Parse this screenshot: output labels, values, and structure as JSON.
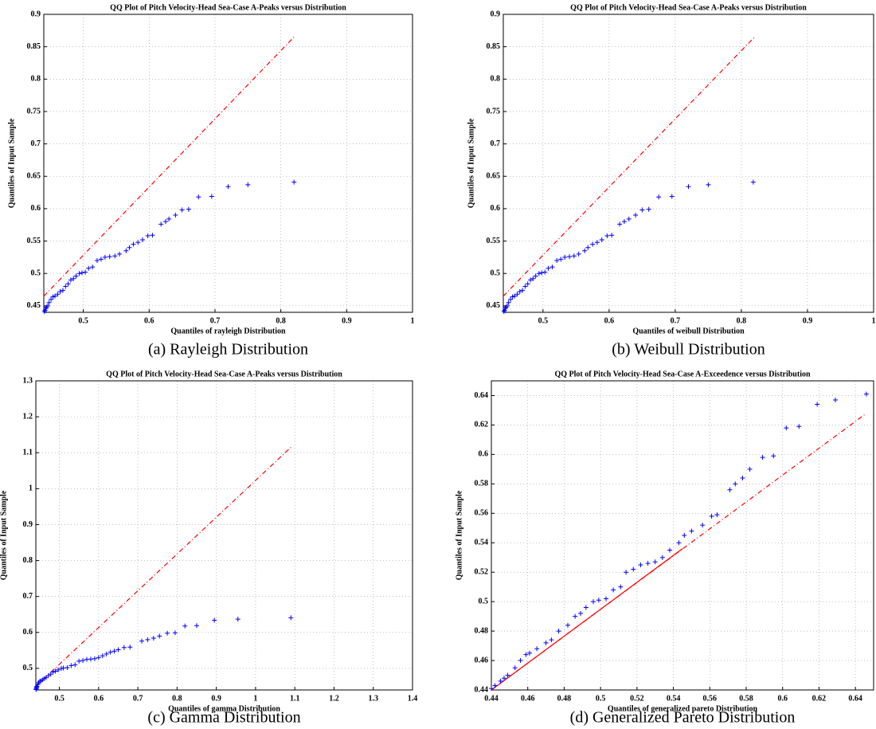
{
  "chart_data": [
    {
      "type": "scatter",
      "title": "QQ Plot of Pitch Velocity-Head Sea-Case A-Peaks versus Distribution",
      "xlabel": "Quantiles of rayleigh Distribution",
      "ylabel": "Quantiles of Input Sample",
      "caption": "(a) Rayleigh Distribution",
      "marker": "+",
      "color": "#0000ff",
      "grid": true,
      "xlim": [
        0.44,
        1
      ],
      "ylim": [
        0.44,
        0.9
      ],
      "xticks": [
        0.5,
        0.6,
        0.7,
        0.8,
        0.9,
        1
      ],
      "yticks": [
        0.45,
        0.5,
        0.55,
        0.6,
        0.65,
        0.7,
        0.75,
        0.8,
        0.85,
        0.9
      ],
      "x": [
        0.441,
        0.442,
        0.443,
        0.444,
        0.446,
        0.448,
        0.451,
        0.454,
        0.457,
        0.461,
        0.465,
        0.469,
        0.473,
        0.477,
        0.481,
        0.485,
        0.489,
        0.494,
        0.498,
        0.503,
        0.508,
        0.514,
        0.521,
        0.527,
        0.533,
        0.54,
        0.548,
        0.555,
        0.565,
        0.57,
        0.576,
        0.583,
        0.59,
        0.598,
        0.605,
        0.618,
        0.625,
        0.63,
        0.64,
        0.65,
        0.66,
        0.675,
        0.695,
        0.72,
        0.75,
        0.82
      ],
      "values": [
        0.441,
        0.443,
        0.446,
        0.448,
        0.45,
        0.455,
        0.46,
        0.464,
        0.465,
        0.468,
        0.472,
        0.474,
        0.48,
        0.484,
        0.49,
        0.492,
        0.496,
        0.5,
        0.501,
        0.502,
        0.508,
        0.51,
        0.52,
        0.522,
        0.525,
        0.526,
        0.527,
        0.53,
        0.535,
        0.54,
        0.545,
        0.548,
        0.552,
        0.558,
        0.559,
        0.576,
        0.58,
        0.584,
        0.59,
        0.598,
        0.599,
        0.618,
        0.619,
        0.634,
        0.637,
        0.641
      ],
      "lines": [
        {
          "style": "dashed",
          "color": "#ff0000",
          "x": [
            0.44,
            0.82
          ],
          "y": [
            0.465,
            0.865
          ]
        }
      ]
    },
    {
      "type": "scatter",
      "title": "QQ Plot of Pitch Velocity-Head Sea-Case A-Peaks versus Distribution",
      "xlabel": "Quantiles of weibull Distribution",
      "ylabel": "Quantiles of Input Sample",
      "caption": "(b) Weibull Distribution",
      "marker": "+",
      "color": "#0000ff",
      "grid": true,
      "xlim": [
        0.44,
        1
      ],
      "ylim": [
        0.44,
        0.9
      ],
      "xticks": [
        0.5,
        0.6,
        0.7,
        0.8,
        0.9,
        1
      ],
      "yticks": [
        0.45,
        0.5,
        0.55,
        0.6,
        0.65,
        0.7,
        0.75,
        0.8,
        0.85,
        0.9
      ],
      "x": [
        0.441,
        0.442,
        0.443,
        0.444,
        0.446,
        0.448,
        0.451,
        0.454,
        0.457,
        0.461,
        0.465,
        0.469,
        0.473,
        0.477,
        0.481,
        0.485,
        0.489,
        0.494,
        0.498,
        0.503,
        0.508,
        0.514,
        0.521,
        0.527,
        0.533,
        0.54,
        0.547,
        0.554,
        0.563,
        0.568,
        0.575,
        0.582,
        0.589,
        0.597,
        0.604,
        0.616,
        0.623,
        0.63,
        0.64,
        0.65,
        0.66,
        0.675,
        0.695,
        0.72,
        0.75,
        0.818
      ],
      "values": [
        0.441,
        0.443,
        0.446,
        0.448,
        0.45,
        0.455,
        0.46,
        0.464,
        0.465,
        0.468,
        0.472,
        0.474,
        0.48,
        0.484,
        0.49,
        0.492,
        0.496,
        0.5,
        0.501,
        0.502,
        0.508,
        0.51,
        0.52,
        0.522,
        0.525,
        0.526,
        0.527,
        0.53,
        0.535,
        0.54,
        0.545,
        0.548,
        0.552,
        0.558,
        0.559,
        0.576,
        0.58,
        0.584,
        0.59,
        0.598,
        0.599,
        0.618,
        0.619,
        0.634,
        0.637,
        0.641
      ],
      "lines": [
        {
          "style": "dashed",
          "color": "#ff0000",
          "x": [
            0.44,
            0.82
          ],
          "y": [
            0.465,
            0.865
          ]
        }
      ]
    },
    {
      "type": "scatter",
      "title": "QQ Plot of Pitch Velocity-Head Sea-Case A-Peaks versus Distribution",
      "xlabel": "Quantiles of gamma Distribution",
      "ylabel": "Quantiles of Input Sample",
      "caption": "(c) Gamma Distribution",
      "marker": "+",
      "color": "#0000ff",
      "grid": true,
      "xlim": [
        0.44,
        1.4
      ],
      "ylim": [
        0.44,
        1.3
      ],
      "xticks": [
        0.5,
        0.6,
        0.7,
        0.8,
        0.9,
        1,
        1.1,
        1.2,
        1.3,
        1.4
      ],
      "yticks": [
        0.5,
        0.6,
        0.7,
        0.8,
        0.9,
        1,
        1.1,
        1.2,
        1.3
      ],
      "x": [
        0.4405,
        0.441,
        0.4415,
        0.442,
        0.443,
        0.445,
        0.447,
        0.45,
        0.453,
        0.457,
        0.461,
        0.466,
        0.472,
        0.478,
        0.484,
        0.49,
        0.497,
        0.505,
        0.51,
        0.52,
        0.53,
        0.54,
        0.55,
        0.56,
        0.57,
        0.58,
        0.59,
        0.6,
        0.61,
        0.62,
        0.63,
        0.64,
        0.65,
        0.665,
        0.68,
        0.71,
        0.725,
        0.74,
        0.755,
        0.775,
        0.795,
        0.82,
        0.85,
        0.895,
        0.955,
        1.09
      ],
      "values": [
        0.441,
        0.443,
        0.446,
        0.448,
        0.45,
        0.455,
        0.46,
        0.464,
        0.465,
        0.468,
        0.472,
        0.474,
        0.48,
        0.484,
        0.49,
        0.492,
        0.496,
        0.5,
        0.501,
        0.502,
        0.508,
        0.51,
        0.52,
        0.522,
        0.525,
        0.526,
        0.527,
        0.53,
        0.535,
        0.54,
        0.545,
        0.548,
        0.552,
        0.558,
        0.559,
        0.576,
        0.58,
        0.584,
        0.59,
        0.598,
        0.599,
        0.618,
        0.619,
        0.634,
        0.637,
        0.641
      ],
      "lines": [
        {
          "style": "dashed",
          "color": "#ff0000",
          "x": [
            0.44,
            1.09
          ],
          "y": [
            0.45,
            1.115
          ]
        }
      ]
    },
    {
      "type": "scatter",
      "title": "QQ Plot of Pitch Velocity-Head Sea-Case A-Exceedence versus Distribution",
      "xlabel": "Quantiles of generalized pareto Distribution",
      "ylabel": "Quantiles of Input Sample",
      "caption": "(d) Generalized Pareto Distribution",
      "marker": "+",
      "color": "#0000ff",
      "grid": true,
      "xlim": [
        0.44,
        0.65
      ],
      "ylim": [
        0.44,
        0.65
      ],
      "xticks": [
        0.44,
        0.46,
        0.48,
        0.5,
        0.52,
        0.54,
        0.56,
        0.58,
        0.6,
        0.62,
        0.64
      ],
      "yticks": [
        0.44,
        0.46,
        0.48,
        0.5,
        0.52,
        0.54,
        0.56,
        0.58,
        0.6,
        0.62,
        0.64
      ],
      "x": [
        0.44,
        0.442,
        0.445,
        0.447,
        0.449,
        0.453,
        0.456,
        0.459,
        0.461,
        0.465,
        0.47,
        0.473,
        0.477,
        0.482,
        0.486,
        0.489,
        0.492,
        0.496,
        0.499,
        0.503,
        0.507,
        0.511,
        0.514,
        0.518,
        0.522,
        0.526,
        0.53,
        0.534,
        0.538,
        0.543,
        0.546,
        0.55,
        0.556,
        0.561,
        0.564,
        0.571,
        0.574,
        0.578,
        0.582,
        0.589,
        0.595,
        0.602,
        0.609,
        0.619,
        0.629,
        0.646
      ],
      "values": [
        0.441,
        0.443,
        0.446,
        0.448,
        0.45,
        0.455,
        0.46,
        0.464,
        0.465,
        0.468,
        0.472,
        0.474,
        0.48,
        0.484,
        0.49,
        0.492,
        0.496,
        0.5,
        0.501,
        0.502,
        0.508,
        0.51,
        0.52,
        0.522,
        0.525,
        0.526,
        0.527,
        0.53,
        0.535,
        0.54,
        0.545,
        0.548,
        0.552,
        0.558,
        0.559,
        0.576,
        0.58,
        0.584,
        0.59,
        0.598,
        0.599,
        0.618,
        0.619,
        0.634,
        0.637,
        0.641
      ],
      "lines": [
        {
          "style": "dashed",
          "color": "#ff0000",
          "x": [
            0.44,
            0.645
          ],
          "y": [
            0.44,
            0.627
          ]
        },
        {
          "style": "solid",
          "color": "#ff0000",
          "x": [
            0.44,
            0.545
          ],
          "y": [
            0.44,
            0.536
          ]
        }
      ]
    }
  ]
}
